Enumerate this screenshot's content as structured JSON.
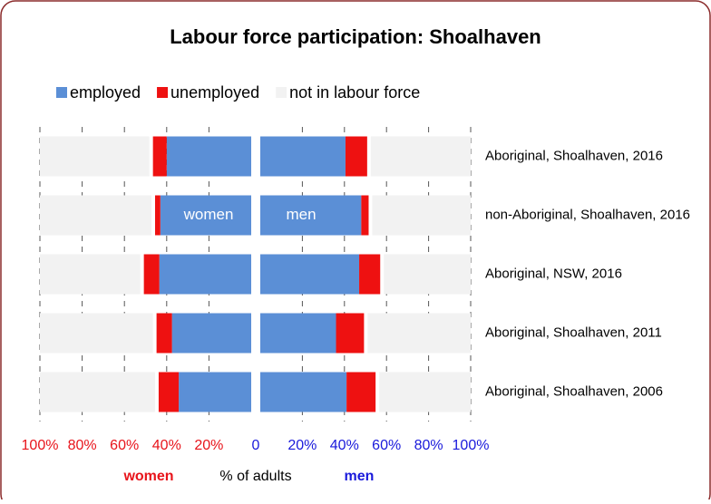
{
  "chart_data": {
    "type": "butterfly-stacked-bar",
    "title": "Labour force participation: Shoalhaven",
    "categories": [
      "Aboriginal, Shoalhaven, 2016",
      "non-Aboriginal, Shoalhaven, 2016",
      "Aboriginal, NSW, 2016",
      "Aboriginal, Shoalhaven, 2011",
      "Aboriginal, Shoalhaven, 2006"
    ],
    "series": [
      {
        "name": "employed",
        "color": "#5b8fd6",
        "women": [
          40,
          43,
          43.5,
          37.5,
          34.3
        ],
        "men": [
          40.5,
          48,
          47,
          36,
          41
        ]
      },
      {
        "name": "unemployed",
        "color": "#ee1111",
        "women": [
          6.5,
          2.5,
          7.3,
          7.3,
          9.5
        ],
        "men": [
          10.3,
          3.5,
          10,
          13.3,
          13.8
        ]
      },
      {
        "name": "not in labour force",
        "color": "#f2f2f2",
        "women": [
          53.5,
          54.5,
          49.2,
          55.2,
          56.2
        ],
        "men": [
          49.2,
          48.5,
          43,
          50.7,
          45.2
        ]
      }
    ],
    "xlim": [
      0,
      100
    ],
    "women_ticks": [
      {
        "value": 100,
        "label": "100%"
      },
      {
        "value": 80,
        "label": "80%"
      },
      {
        "value": 60,
        "label": "60%"
      },
      {
        "value": 40,
        "label": "40%"
      },
      {
        "value": 20,
        "label": "20%"
      }
    ],
    "men_ticks": [
      {
        "value": 0,
        "label": "0"
      },
      {
        "value": 20,
        "label": "20%"
      },
      {
        "value": 40,
        "label": "40%"
      },
      {
        "value": 60,
        "label": "60%"
      },
      {
        "value": 80,
        "label": "80%"
      },
      {
        "value": 100,
        "label": "100%"
      }
    ],
    "women_label": "women",
    "men_label": "men",
    "xlabel": "% of adults",
    "grid": true
  }
}
